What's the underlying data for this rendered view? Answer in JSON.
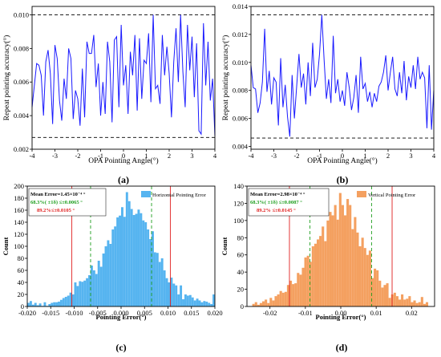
{
  "chart_data": [
    {
      "type": "line",
      "panel_label": "(a)",
      "xlabel": "OPA Pointing Angle(°)",
      "ylabel": "Repeat pointing accuracy(°)",
      "xlim": [
        -4,
        4
      ],
      "ylim": [
        0.002,
        0.0105
      ],
      "x_ticks": [
        "-4",
        "-3",
        "-2",
        "-1",
        "0",
        "1",
        "2",
        "3",
        "4"
      ],
      "y_ticks": [
        "0.002",
        "0.004",
        "0.006",
        "0.008",
        "0.010"
      ],
      "ref_lines": [
        0.01,
        0.0027
      ],
      "color": "#1a1aff",
      "x": [
        -4.0,
        -3.9,
        -3.8,
        -3.7,
        -3.6,
        -3.5,
        -3.4,
        -3.3,
        -3.2,
        -3.1,
        -3.0,
        -2.9,
        -2.8,
        -2.7,
        -2.6,
        -2.5,
        -2.4,
        -2.3,
        -2.2,
        -2.1,
        -2.0,
        -1.9,
        -1.8,
        -1.7,
        -1.6,
        -1.5,
        -1.4,
        -1.3,
        -1.2,
        -1.1,
        -1.0,
        -0.9,
        -0.8,
        -0.7,
        -0.6,
        -0.5,
        -0.4,
        -0.3,
        -0.2,
        -0.1,
        0.0,
        0.1,
        0.2,
        0.3,
        0.4,
        0.5,
        0.6,
        0.7,
        0.8,
        0.9,
        1.0,
        1.1,
        1.2,
        1.3,
        1.4,
        1.5,
        1.6,
        1.7,
        1.8,
        1.9,
        2.0,
        2.1,
        2.2,
        2.3,
        2.4,
        2.5,
        2.6,
        2.7,
        2.8,
        2.9,
        3.0,
        3.1,
        3.2,
        3.3,
        3.4,
        3.5,
        3.6,
        3.7,
        3.8,
        3.9,
        4.0
      ],
      "values": [
        0.0045,
        0.0058,
        0.0071,
        0.007,
        0.0064,
        0.004,
        0.0072,
        0.0079,
        0.0065,
        0.0035,
        0.0082,
        0.0074,
        0.0049,
        0.0037,
        0.0062,
        0.005,
        0.008,
        0.0074,
        0.0038,
        0.0055,
        0.005,
        0.0034,
        0.0068,
        0.0039,
        0.0084,
        0.0077,
        0.0077,
        0.0088,
        0.0057,
        0.0071,
        0.004,
        0.006,
        0.0041,
        0.0084,
        0.0072,
        0.0036,
        0.0085,
        0.0087,
        0.0045,
        0.0094,
        0.0058,
        0.007,
        0.0041,
        0.0078,
        0.0064,
        0.0088,
        0.0043,
        0.0086,
        0.005,
        0.0073,
        0.0071,
        0.0089,
        0.0048,
        0.01,
        0.0056,
        0.0058,
        0.0047,
        0.0088,
        0.0064,
        0.0081,
        0.0065,
        0.0039,
        0.0072,
        0.0092,
        0.006,
        0.01,
        0.0066,
        0.0045,
        0.0094,
        0.0067,
        0.0087,
        0.0051,
        0.0083,
        0.0031,
        0.0029,
        0.0095,
        0.0058,
        0.0084,
        0.0049,
        0.0062,
        0.0028
      ]
    },
    {
      "type": "line",
      "panel_label": "(b)",
      "xlabel": "OPA Pointing Angle(°)",
      "ylabel": "Repeat pointing accuracy(°)",
      "xlim": [
        -4,
        4
      ],
      "ylim": [
        0.0038,
        0.014
      ],
      "x_ticks": [
        "-4",
        "-3",
        "-2",
        "-1",
        "0",
        "1",
        "2",
        "3",
        "4"
      ],
      "y_ticks": [
        "0.004",
        "0.006",
        "0.008",
        "0.010",
        "0.012",
        "0.014"
      ],
      "ref_lines": [
        0.0134,
        0.0046
      ],
      "color": "#1a1aff",
      "x": [
        -4.0,
        -3.9,
        -3.8,
        -3.7,
        -3.6,
        -3.5,
        -3.4,
        -3.3,
        -3.2,
        -3.1,
        -3.0,
        -2.9,
        -2.8,
        -2.7,
        -2.6,
        -2.5,
        -2.4,
        -2.3,
        -2.2,
        -2.1,
        -2.0,
        -1.9,
        -1.8,
        -1.7,
        -1.6,
        -1.5,
        -1.4,
        -1.3,
        -1.2,
        -1.1,
        -1.0,
        -0.9,
        -0.8,
        -0.7,
        -0.6,
        -0.5,
        -0.4,
        -0.3,
        -0.2,
        -0.1,
        0.0,
        0.1,
        0.2,
        0.3,
        0.4,
        0.5,
        0.6,
        0.7,
        0.8,
        0.9,
        1.0,
        1.1,
        1.2,
        1.3,
        1.4,
        1.5,
        1.6,
        1.7,
        1.8,
        1.9,
        2.0,
        2.1,
        2.2,
        2.3,
        2.4,
        2.5,
        2.6,
        2.7,
        2.8,
        2.9,
        3.0,
        3.1,
        3.2,
        3.3,
        3.4,
        3.5,
        3.6,
        3.7,
        3.8,
        3.9,
        4.0
      ],
      "values": [
        0.0098,
        0.0082,
        0.0081,
        0.0064,
        0.0071,
        0.0086,
        0.0124,
        0.0079,
        0.0094,
        0.007,
        0.0089,
        0.0086,
        0.0055,
        0.0103,
        0.0068,
        0.0084,
        0.0061,
        0.0047,
        0.0091,
        0.006,
        0.0083,
        0.0106,
        0.0082,
        0.0092,
        0.007,
        0.01,
        0.0076,
        0.0114,
        0.0082,
        0.0088,
        0.0106,
        0.0134,
        0.0102,
        0.0074,
        0.0088,
        0.0071,
        0.0119,
        0.0078,
        0.0088,
        0.0072,
        0.008,
        0.0069,
        0.0093,
        0.0082,
        0.0066,
        0.0075,
        0.0091,
        0.0064,
        0.0104,
        0.0081,
        0.0085,
        0.0072,
        0.0079,
        0.0068,
        0.0078,
        0.0072,
        0.0083,
        0.0086,
        0.0093,
        0.0105,
        0.008,
        0.0093,
        0.0104,
        0.0081,
        0.0076,
        0.0093,
        0.0078,
        0.0101,
        0.0073,
        0.009,
        0.0082,
        0.0098,
        0.0081,
        0.0104,
        0.0088,
        0.0093,
        0.0089,
        0.0053,
        0.0098,
        0.0052,
        0.008
      ]
    },
    {
      "type": "bar",
      "panel_label": "(c)",
      "xlabel": "Pointing Error(°)",
      "ylabel": "Count",
      "xlim": [
        -0.02,
        0.02
      ],
      "ylim": [
        0,
        200
      ],
      "x_ticks": [
        "-0.020",
        "-0.015",
        "-0.010",
        "-0.005",
        "0.000",
        "0.005",
        "0.010",
        "0.015",
        "0.020"
      ],
      "y_ticks": [
        "0",
        "20",
        "40",
        "60",
        "80",
        "100",
        "120",
        "140",
        "160",
        "180",
        "200"
      ],
      "bin_start": -0.02,
      "bin_width": 0.0005,
      "bar_color": "#56b4f0",
      "legend_label": "Horizontal Pointing Error",
      "annotations": [
        "Mean Error=1.45×10⁻⁴ °",
        "68.3%( ±1δ)  ≤±0.0065 °",
        "89.2%≤±0.0105 °"
      ],
      "vlines": [
        {
          "x": -0.0065,
          "color": "#1e9e1e"
        },
        {
          "x": 0.0065,
          "color": "#1e9e1e"
        },
        {
          "x": -0.0105,
          "color": "#e02020"
        },
        {
          "x": 0.0105,
          "color": "#e02020"
        }
      ],
      "values": [
        6,
        9,
        3,
        6,
        2,
        5,
        1,
        7,
        1,
        4,
        6,
        7,
        7,
        8,
        11,
        14,
        16,
        18,
        23,
        20,
        40,
        34,
        42,
        41,
        43,
        47,
        52,
        68,
        60,
        54,
        76,
        66,
        88,
        100,
        110,
        104,
        128,
        133,
        148,
        151,
        165,
        149,
        190,
        175,
        162,
        152,
        154,
        161,
        155,
        143,
        140,
        128,
        112,
        125,
        90,
        89,
        74,
        80,
        60,
        47,
        40,
        48,
        38,
        35,
        20,
        35,
        12,
        20,
        18,
        19,
        15,
        10,
        13,
        10,
        7,
        9,
        8,
        6,
        4,
        20
      ]
    },
    {
      "type": "bar",
      "panel_label": "(d)",
      "xlabel": "Pointing Error(°)",
      "ylabel": "Count",
      "xlim": [
        -0.0265,
        0.0265
      ],
      "ylim": [
        0,
        140
      ],
      "x_ticks": [
        "-0.02",
        "-0.01",
        "0.00",
        "0.01",
        "0.02"
      ],
      "y_ticks": [
        "0",
        "20",
        "40",
        "60",
        "80",
        "100",
        "120",
        "140"
      ],
      "bin_start": -0.025,
      "bin_width": 0.0007,
      "bar_color": "#f4a060",
      "legend_label": "Vertical Pointing Error",
      "annotations": [
        "Mean Error=2.98×10⁻⁴ °",
        "68.3%( ±1δ)  ≤±0.0087 °",
        "89.2% ≤±0.0145 °"
      ],
      "vlines": [
        {
          "x": -0.0087,
          "color": "#1e9e1e"
        },
        {
          "x": 0.0087,
          "color": "#1e9e1e"
        },
        {
          "x": -0.0145,
          "color": "#e02020"
        },
        {
          "x": 0.0145,
          "color": "#e02020"
        }
      ],
      "values": [
        3,
        5,
        2,
        4,
        6,
        8,
        4,
        10,
        7,
        12,
        14,
        18,
        16,
        17,
        25,
        30,
        26,
        27,
        39,
        37,
        45,
        57,
        59,
        52,
        70,
        73,
        78,
        82,
        93,
        76,
        100,
        110,
        106,
        118,
        101,
        132,
        118,
        106,
        125,
        118,
        90,
        104,
        86,
        70,
        80,
        68,
        60,
        65,
        33,
        44,
        42,
        30,
        22,
        25,
        27,
        10,
        14,
        16,
        12,
        8,
        14,
        8,
        9,
        12,
        5,
        7,
        4,
        5,
        11,
        3,
        5
      ]
    }
  ]
}
